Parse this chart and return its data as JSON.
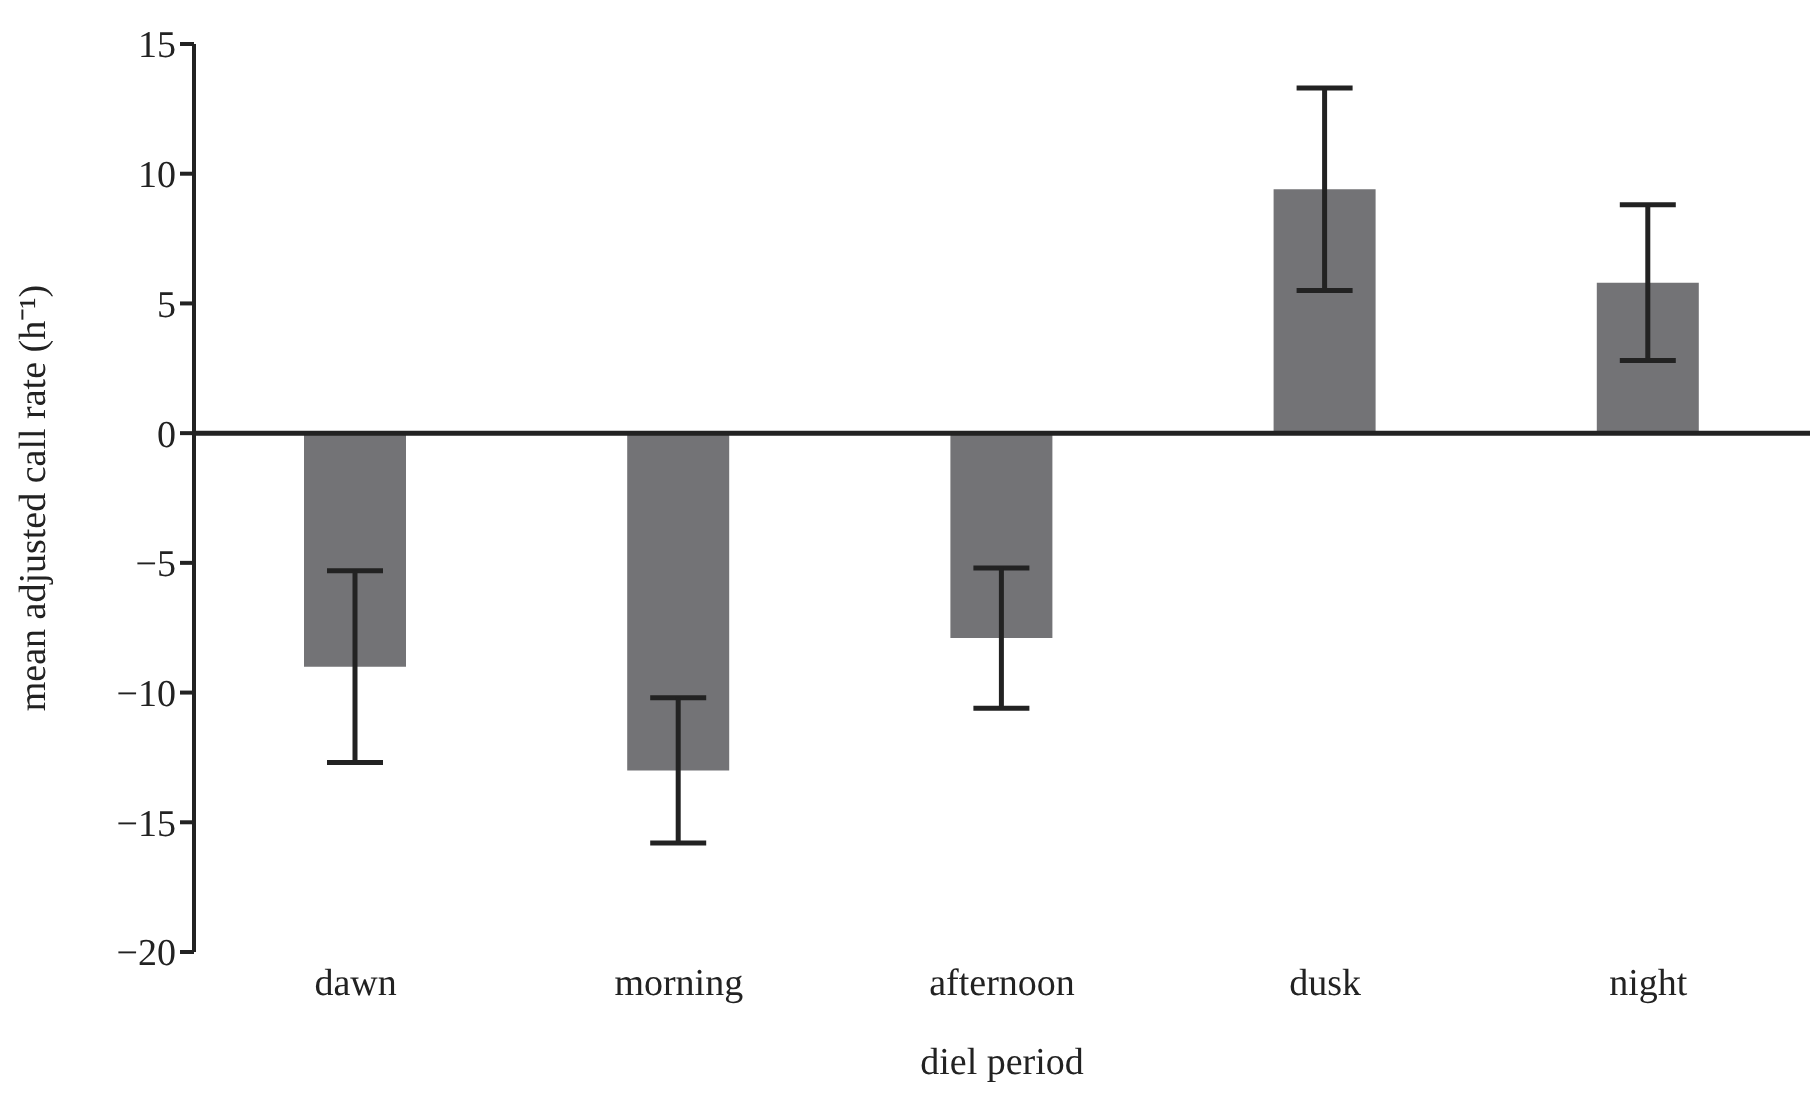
{
  "chart_data": {
    "type": "bar",
    "xlabel": "diel period",
    "ylabel": "mean adjusted call rate (h⁻¹)",
    "categories": [
      "dawn",
      "morning",
      "afternoon",
      "dusk",
      "night"
    ],
    "values": [
      -9.0,
      -13.0,
      -7.9,
      9.4,
      5.8
    ],
    "errors": [
      3.7,
      2.8,
      2.7,
      3.9,
      3.0
    ],
    "color": "#737376",
    "ylim": [
      -20,
      15
    ],
    "yticks": [
      -20,
      -15,
      -10,
      -5,
      0,
      5,
      10,
      15
    ],
    "ref_lines": [
      {
        "axis": "y",
        "value": 0,
        "color": "#222222"
      }
    ]
  }
}
